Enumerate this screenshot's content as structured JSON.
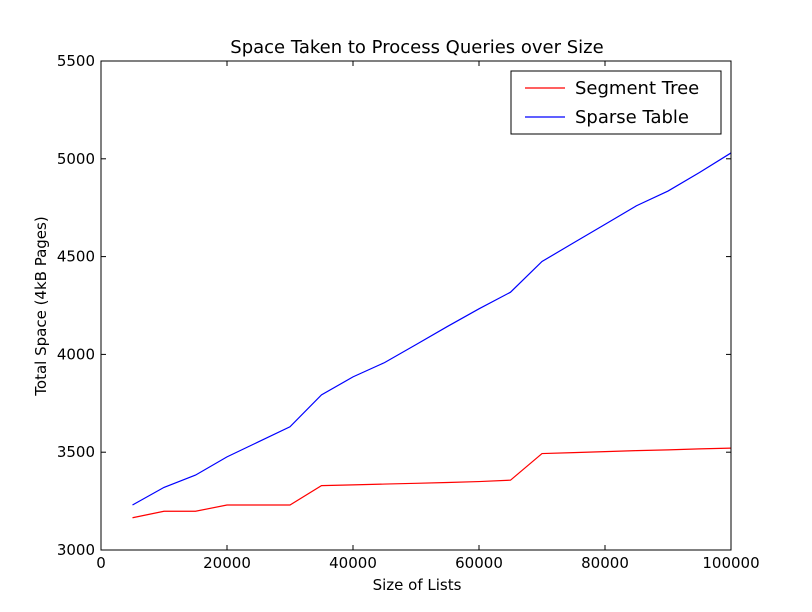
{
  "chart_data": {
    "type": "line",
    "title": "Space Taken to Process Queries over Size",
    "xlabel": "Size of Lists",
    "ylabel": "Total Space (4kB Pages)",
    "xlim": [
      0,
      100000
    ],
    "ylim": [
      3000,
      5500
    ],
    "xticks": [
      0,
      20000,
      40000,
      60000,
      80000,
      100000
    ],
    "xtick_labels": [
      "0",
      "20000",
      "40000",
      "60000",
      "80000",
      "100000"
    ],
    "yticks": [
      3000,
      3500,
      4000,
      4500,
      5000,
      5500
    ],
    "ytick_labels": [
      "3000",
      "3500",
      "4000",
      "4500",
      "5000",
      "5500"
    ],
    "grid": false,
    "legend_position": "top-right",
    "x": [
      5000,
      10000,
      15000,
      20000,
      25000,
      30000,
      35000,
      40000,
      45000,
      50000,
      55000,
      60000,
      65000,
      70000,
      75000,
      80000,
      85000,
      90000,
      95000,
      100000
    ],
    "series": [
      {
        "name": "Segment Tree",
        "color": "#ff0000",
        "values": [
          3165,
          3198,
          3198,
          3230,
          3230,
          3230,
          3329,
          3333,
          3337,
          3341,
          3345,
          3350,
          3357,
          3493,
          3498,
          3503,
          3508,
          3512,
          3517,
          3521
        ]
      },
      {
        "name": "Sparse Table",
        "color": "#0000ff",
        "values": [
          3230,
          3320,
          3383,
          3476,
          3553,
          3630,
          3793,
          3885,
          3958,
          4050,
          4143,
          4233,
          4318,
          4475,
          4570,
          4665,
          4760,
          4835,
          4930,
          5030
        ]
      }
    ]
  }
}
